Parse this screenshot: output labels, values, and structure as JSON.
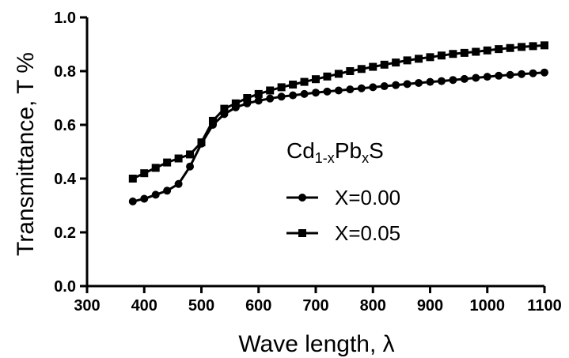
{
  "chart_data": {
    "type": "line",
    "title": "",
    "xlabel": "Wave length, λ",
    "ylabel": "Transmittance, T %",
    "xlim": [
      300,
      1100
    ],
    "ylim": [
      0.0,
      1.0
    ],
    "xticks": [
      "300",
      "400",
      "500",
      "600",
      "700",
      "800",
      "900",
      "1000",
      "1100"
    ],
    "yticks": [
      "0.0",
      "0.2",
      "0.4",
      "0.6",
      "0.8",
      "1.0"
    ],
    "grid": false,
    "legend": {
      "placement": "center-right",
      "title_main": "Cd",
      "title_sub1": "1-x",
      "title_mid": "Pb",
      "title_sub2": "x",
      "title_end": "S"
    },
    "x": [
      380,
      400,
      420,
      440,
      460,
      480,
      500,
      520,
      540,
      560,
      580,
      600,
      620,
      640,
      660,
      680,
      700,
      720,
      740,
      760,
      780,
      800,
      820,
      840,
      860,
      880,
      900,
      920,
      940,
      960,
      980,
      1000,
      1020,
      1040,
      1060,
      1080,
      1100
    ],
    "series": [
      {
        "name": "X=0.00",
        "marker": "circle",
        "values": [
          0.315,
          0.325,
          0.34,
          0.355,
          0.38,
          0.445,
          0.53,
          0.6,
          0.64,
          0.665,
          0.68,
          0.69,
          0.698,
          0.705,
          0.71,
          0.715,
          0.72,
          0.724,
          0.728,
          0.732,
          0.736,
          0.74,
          0.744,
          0.748,
          0.752,
          0.756,
          0.76,
          0.763,
          0.767,
          0.771,
          0.775,
          0.779,
          0.783,
          0.786,
          0.789,
          0.792,
          0.795
        ]
      },
      {
        "name": "X=0.05",
        "marker": "square",
        "values": [
          0.4,
          0.42,
          0.44,
          0.46,
          0.475,
          0.49,
          0.535,
          0.615,
          0.66,
          0.68,
          0.7,
          0.715,
          0.728,
          0.74,
          0.75,
          0.76,
          0.77,
          0.78,
          0.79,
          0.8,
          0.808,
          0.816,
          0.824,
          0.832,
          0.84,
          0.846,
          0.852,
          0.858,
          0.864,
          0.868,
          0.872,
          0.877,
          0.882,
          0.886,
          0.89,
          0.893,
          0.896
        ]
      }
    ]
  }
}
